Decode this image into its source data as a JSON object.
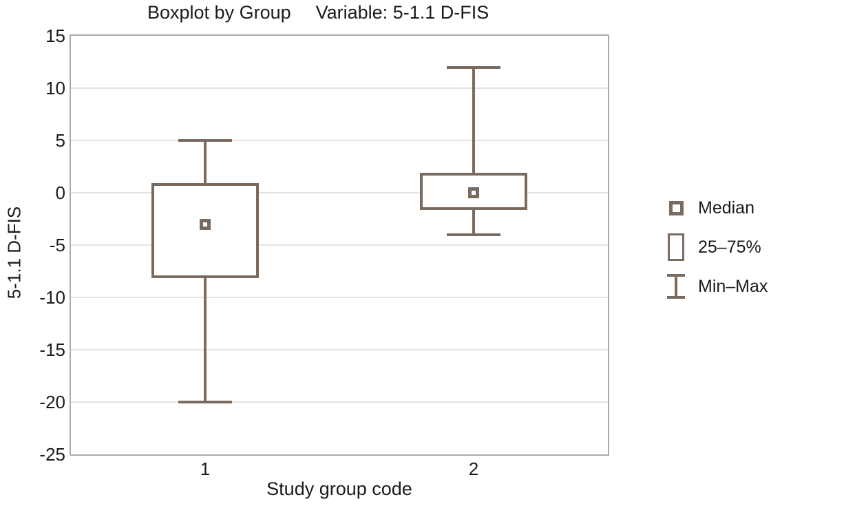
{
  "page": {
    "background": "#ffffff"
  },
  "colors": {
    "line": "#7a6b60",
    "grid": "#e3e3e3",
    "plot_border": "#aaabad",
    "text": "#1b1b1b"
  },
  "chart_data": {
    "type": "boxplot",
    "title_left": "Boxplot by Group",
    "title_right": "Variable: 5-1.1 D-FIS",
    "xlabel": "Study group code",
    "ylabel": "5-1.1 D-FIS",
    "ylim": [
      -25,
      15
    ],
    "yticks": [
      15,
      10,
      5,
      0,
      -5,
      -10,
      -15,
      -20,
      -25
    ],
    "categories": [
      "1",
      "2"
    ],
    "series": [
      {
        "group": "1",
        "min": -20,
        "q1": -8,
        "median": -3,
        "q3": 0.8,
        "max": 5
      },
      {
        "group": "2",
        "min": -4,
        "q1": -1.5,
        "median": 0,
        "q3": 1.8,
        "max": 12
      }
    ],
    "grid": "horizontal-only",
    "legend_position": "right-middle",
    "legend": [
      {
        "glyph": "median-square-icon",
        "label": "Median"
      },
      {
        "glyph": "box-rect-icon",
        "label": "25–75%"
      },
      {
        "glyph": "min-max-ibeam-icon",
        "label": "Min–Max"
      }
    ]
  }
}
